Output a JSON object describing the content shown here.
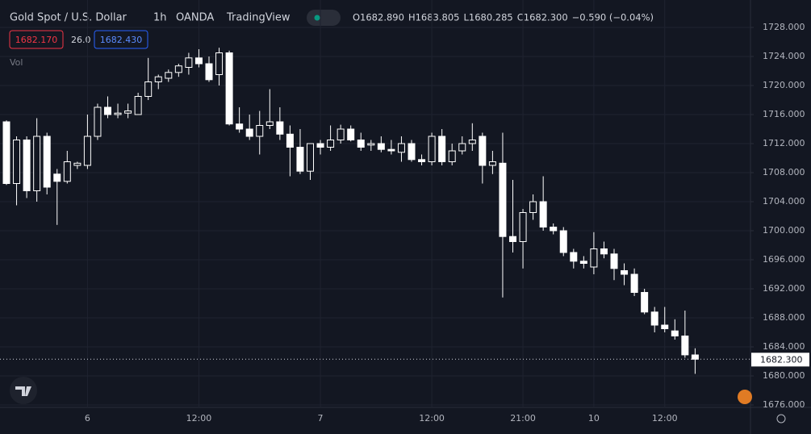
{
  "chart_data": {
    "type": "candlestick",
    "title": "Gold Spot / U.S. Dollar",
    "interval": "1h",
    "source": "OANDA",
    "platform": "TradingView",
    "ohlc_header": [
      "O1682.890",
      "H1683.805",
      "L1680.285",
      "C1682.300",
      "−0.590 (−0.04%)"
    ],
    "sell_price": "1682.170",
    "spread": "26.0",
    "buy_price": "1682.430",
    "volume_label": "Vol",
    "last_price": 1682.3,
    "last_price_label": "1682.300",
    "up_color": "#131722",
    "down_color": "#ffffff",
    "wick_color": "#ffffff",
    "grid": true,
    "categories": [
      null,
      null,
      null,
      null,
      null,
      null,
      null,
      null,
      "6",
      null,
      null,
      null,
      null,
      null,
      null,
      null,
      null,
      null,
      null,
      "12:00",
      null,
      null,
      null,
      null,
      null,
      null,
      null,
      null,
      null,
      null,
      null,
      "7",
      null,
      null,
      null,
      null,
      null,
      null,
      null,
      null,
      null,
      null,
      "12:00",
      null,
      null,
      null,
      null,
      null,
      null,
      null,
      null,
      "21:00",
      null,
      null,
      null,
      null,
      null,
      null,
      "10",
      null,
      null,
      null,
      null,
      null,
      null,
      "12:00",
      null,
      null,
      null
    ],
    "open": [
      1715,
      1706.5,
      1712.5,
      1705.5,
      1713,
      1707.8,
      1706.8,
      1709,
      1709,
      1713,
      1717,
      1716,
      1716.2,
      1716,
      1718.5,
      1720.5,
      1721,
      1721.8,
      1722.5,
      1723.8,
      1723,
      1721.5,
      1724.5,
      1714.7,
      1714,
      1713,
      1714.5,
      1715,
      1713.3,
      1711.5,
      1708.2,
      1712,
      1711.5,
      1712.5,
      1714,
      1712.5,
      1711.8,
      1712,
      1711.2,
      1710.8,
      1712,
      1709.8,
      1709.5,
      1713,
      1709.5,
      1711,
      1712,
      1713,
      1709,
      1709.3,
      1699.2,
      1698.5,
      1702.5,
      1704,
      1700.5,
      1700,
      1697,
      1695.8,
      1695,
      1697.5,
      1696.8,
      1694.5,
      1694,
      1691.5,
      1688.8,
      1687,
      1686.2,
      1685.5,
      1682.89
    ],
    "high": [
      1715.2,
      1713,
      1713,
      1715.5,
      1713.5,
      1708.5,
      1711,
      1709.5,
      1716,
      1717.5,
      1718.5,
      1717.5,
      1717.5,
      1719,
      1723.8,
      1721.5,
      1722.2,
      1723,
      1724.5,
      1725,
      1724,
      1725.2,
      1724.8,
      1717,
      1716,
      1716.5,
      1719.5,
      1717,
      1714.5,
      1714,
      1712,
      1712.5,
      1714.5,
      1714.6,
      1714.5,
      1713.5,
      1712.5,
      1713,
      1712.5,
      1713,
      1712.5,
      1710.5,
      1713.5,
      1714,
      1712,
      1713,
      1714.8,
      1713.5,
      1711,
      1713.5,
      1707,
      1703,
      1705,
      1707.5,
      1701,
      1700.5,
      1697.5,
      1696.5,
      1699.8,
      1698.5,
      1697.5,
      1695.5,
      1694.8,
      1692,
      1689.5,
      1689.5,
      1687.8,
      1689,
      1683.805
    ],
    "low": [
      1706.3,
      1703.5,
      1704.5,
      1704,
      1705,
      1700.8,
      1706.5,
      1708.5,
      1708.5,
      1712.5,
      1715.5,
      1715.5,
      1715.5,
      1716,
      1718,
      1719.5,
      1720.5,
      1721.2,
      1721.5,
      1722.5,
      1720.5,
      1720,
      1714.5,
      1713.5,
      1712.5,
      1710.5,
      1714,
      1712.5,
      1707.5,
      1707.8,
      1707,
      1710.5,
      1711,
      1712,
      1712.3,
      1711,
      1711,
      1710.8,
      1710.5,
      1709.5,
      1709.5,
      1709,
      1709,
      1709,
      1709,
      1710.5,
      1711,
      1706.5,
      1707.8,
      1690.8,
      1697,
      1694.8,
      1701.5,
      1700,
      1699.5,
      1696.5,
      1694.8,
      1694.8,
      1694,
      1696.2,
      1693.2,
      1692.5,
      1691,
      1688.5,
      1686,
      1686,
      1685,
      1682.5,
      1680.285
    ],
    "close": [
      1706.5,
      1712.5,
      1705.5,
      1713,
      1706,
      1706.8,
      1709.5,
      1709.3,
      1713,
      1717,
      1716,
      1716.2,
      1716.5,
      1718.5,
      1720.5,
      1721.2,
      1721.8,
      1722.7,
      1723.8,
      1723,
      1720.8,
      1724.5,
      1714.7,
      1714,
      1713,
      1714.5,
      1715,
      1713.3,
      1711.5,
      1708.2,
      1712,
      1711.5,
      1712.5,
      1714,
      1712.5,
      1711.5,
      1712,
      1711.2,
      1711,
      1712,
      1709.8,
      1709.5,
      1713,
      1709.5,
      1711,
      1712,
      1712.5,
      1709,
      1709.5,
      1699.2,
      1698.5,
      1702.5,
      1704,
      1700.5,
      1700,
      1697,
      1695.8,
      1695.5,
      1697.5,
      1696.8,
      1694.8,
      1694,
      1691.5,
      1688.8,
      1687,
      1686.5,
      1685.5,
      1682.9,
      1682.3
    ],
    "ylim": [
      1676,
      1728
    ],
    "yticks": [
      {
        "value": 1728,
        "label": "1728.000"
      },
      {
        "value": 1724,
        "label": "1724.000"
      },
      {
        "value": 1720,
        "label": "1720.000"
      },
      {
        "value": 1716,
        "label": "1716.000"
      },
      {
        "value": 1712,
        "label": "1712.000"
      },
      {
        "value": 1708,
        "label": "1708.000"
      },
      {
        "value": 1704,
        "label": "1704.000"
      },
      {
        "value": 1700,
        "label": "1700.000"
      },
      {
        "value": 1696,
        "label": "1696.000"
      },
      {
        "value": 1692,
        "label": "1692.000"
      },
      {
        "value": 1688,
        "label": "1688.000"
      },
      {
        "value": 1684,
        "label": "1684.000"
      },
      {
        "value": 1680,
        "label": "1680.000"
      },
      {
        "value": 1676,
        "label": "1676.000"
      }
    ]
  }
}
